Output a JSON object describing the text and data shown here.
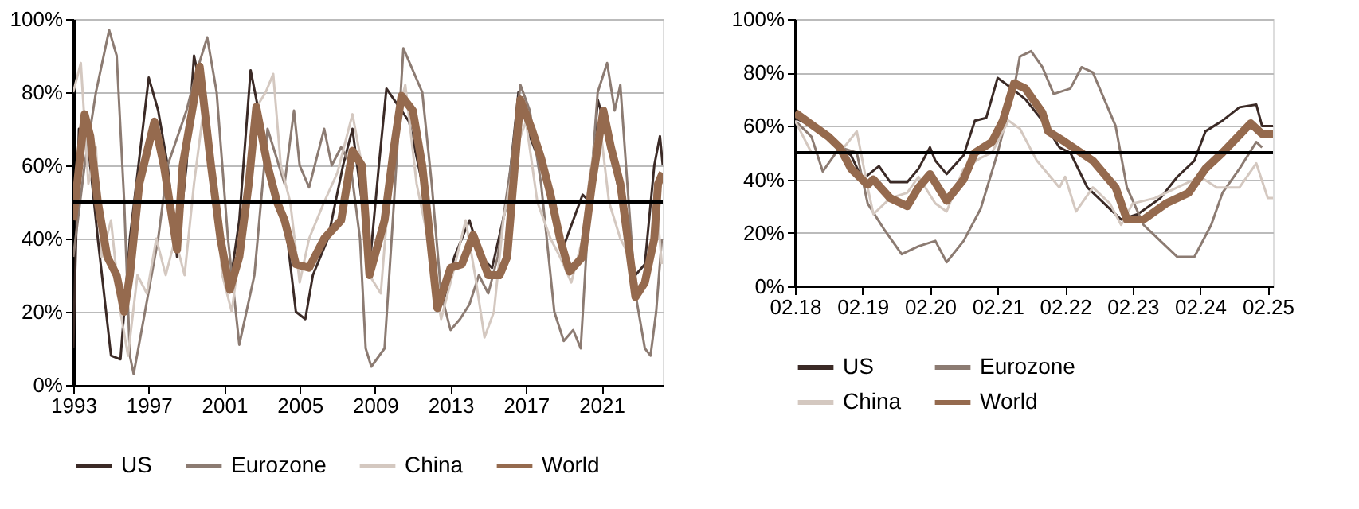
{
  "chart_data": [
    {
      "type": "line",
      "xlim": [
        1993,
        2024.25
      ],
      "xticks": [
        1993,
        1997,
        2001,
        2005,
        2009,
        2013,
        2017,
        2021
      ],
      "ylim": [
        0,
        100
      ],
      "yticks": [
        {
          "value": 0,
          "label": "0%"
        },
        {
          "value": 20,
          "label": "20%"
        },
        {
          "value": 40,
          "label": "40%"
        },
        {
          "value": 60,
          "label": "60%"
        },
        {
          "value": 80,
          "label": "80%"
        },
        {
          "value": 100,
          "label": "100%"
        }
      ],
      "grid": "y",
      "legend": "bottom",
      "line_style": "solid",
      "ref_lines": [
        {
          "axis": "y",
          "value": 50,
          "color": "#000000"
        }
      ],
      "series": [
        {
          "name": "US",
          "color": "#3b2a26",
          "x": [
            1993.0,
            1993.3,
            1993.8,
            1994.3,
            1995.0,
            1995.5,
            1996.0,
            1997.0,
            1997.5,
            1998.0,
            1998.5,
            1999.0,
            1999.4,
            2000.2,
            2000.8,
            2001.3,
            2001.8,
            2002.4,
            2003.2,
            2003.8,
            2004.3,
            2004.8,
            2005.3,
            2005.7,
            2006.5,
            2007.3,
            2007.8,
            2008.3,
            2008.7,
            2009.2,
            2009.6,
            2010.8,
            2011.5,
            2012.2,
            2012.6,
            2013.2,
            2014.0,
            2014.6,
            2015.2,
            2016.0,
            2016.6,
            2017.2,
            2017.8,
            2018.5,
            2019.0,
            2019.5,
            2020.0,
            2020.4,
            2020.8,
            2021.5,
            2022.2,
            2022.8,
            2023.3,
            2023.8,
            2024.1,
            2024.25
          ],
          "values": [
            10,
            70,
            65,
            40,
            8,
            7,
            40,
            84,
            75,
            60,
            35,
            60,
            90,
            70,
            40,
            27,
            45,
            86,
            65,
            50,
            42,
            20,
            18,
            30,
            40,
            60,
            70,
            50,
            32,
            60,
            81,
            72,
            55,
            28,
            22,
            35,
            45,
            35,
            32,
            50,
            80,
            68,
            60,
            50,
            38,
            45,
            52,
            50,
            78,
            65,
            45,
            30,
            33,
            60,
            68,
            60
          ]
        },
        {
          "name": "Eurozone",
          "color": "#8c7b72",
          "x": [
            1993.0,
            1993.6,
            1994.2,
            1994.9,
            1995.3,
            1995.7,
            1996.0,
            1996.2,
            1996.8,
            1997.5,
            1998.0,
            1999.0,
            1999.5,
            2000.1,
            2000.6,
            2001.2,
            2001.8,
            2002.6,
            2003.3,
            2003.6,
            2004.2,
            2004.7,
            2005.0,
            2005.5,
            2006.3,
            2006.7,
            2007.2,
            2007.7,
            2008.2,
            2008.5,
            2008.8,
            2009.5,
            2010.0,
            2010.5,
            2011.5,
            2012.0,
            2012.5,
            2013.0,
            2013.5,
            2014.0,
            2014.5,
            2015.0,
            2015.5,
            2016.2,
            2016.7,
            2017.2,
            2017.8,
            2018.5,
            2019.0,
            2019.5,
            2019.9,
            2020.3,
            2020.8,
            2021.3,
            2021.7,
            2022.0,
            2022.3,
            2022.8,
            2023.3,
            2023.6,
            2023.9,
            2024.2
          ],
          "values": [
            35,
            60,
            80,
            97,
            90,
            50,
            8,
            3,
            20,
            40,
            60,
            75,
            85,
            95,
            80,
            40,
            11,
            30,
            70,
            65,
            55,
            75,
            60,
            54,
            70,
            60,
            65,
            60,
            40,
            10,
            5,
            10,
            50,
            92,
            80,
            55,
            25,
            15,
            18,
            22,
            30,
            25,
            35,
            60,
            82,
            75,
            55,
            20,
            12,
            15,
            10,
            45,
            80,
            88,
            75,
            82,
            60,
            25,
            10,
            8,
            20,
            40
          ]
        },
        {
          "name": "China",
          "color": "#d4c8c0",
          "x": [
            1993.0,
            1993.4,
            1993.8,
            1994.2,
            1994.5,
            1995.0,
            1995.5,
            1995.9,
            1996.4,
            1996.9,
            1997.4,
            1997.9,
            1998.4,
            1998.9,
            1999.4,
            1999.9,
            2000.4,
            2000.9,
            2001.4,
            2001.9,
            2002.6,
            2003.2,
            2003.6,
            2004.0,
            2004.5,
            2005.0,
            2005.5,
            2006.3,
            2007.0,
            2007.8,
            2008.3,
            2008.7,
            2009.3,
            2010.0,
            2010.6,
            2011.2,
            2011.8,
            2012.5,
            2013.1,
            2013.8,
            2014.3,
            2014.8,
            2015.3,
            2015.8,
            2016.5,
            2017.0,
            2017.6,
            2018.3,
            2018.8,
            2019.4,
            2020.0,
            2020.4,
            2020.9,
            2021.4,
            2022.0,
            2022.5,
            2023.0,
            2023.5,
            2024.0,
            2024.2
          ],
          "values": [
            80,
            88,
            55,
            65,
            35,
            45,
            20,
            8,
            30,
            25,
            40,
            30,
            40,
            30,
            55,
            75,
            60,
            30,
            20,
            40,
            75,
            80,
            85,
            60,
            50,
            28,
            40,
            50,
            58,
            74,
            60,
            30,
            25,
            70,
            82,
            55,
            40,
            18,
            30,
            45,
            30,
            13,
            20,
            45,
            65,
            72,
            50,
            40,
            35,
            28,
            40,
            58,
            72,
            50,
            40,
            35,
            25,
            30,
            45,
            33
          ]
        },
        {
          "name": "World",
          "color": "#956a4e",
          "x": [
            1993.0,
            1993.6,
            1993.9,
            1994.3,
            1994.8,
            1995.3,
            1995.7,
            1996.0,
            1996.5,
            1997.3,
            1997.8,
            1998.5,
            1998.8,
            1999.7,
            2000.3,
            2000.8,
            2001.3,
            2001.8,
            2002.3,
            2002.7,
            2003.3,
            2003.8,
            2004.2,
            2004.8,
            2005.5,
            2006.3,
            2007.2,
            2007.8,
            2008.3,
            2008.7,
            2009.5,
            2010.0,
            2010.4,
            2011.0,
            2011.5,
            2012.3,
            2013.0,
            2013.6,
            2014.2,
            2015.0,
            2015.6,
            2016.0,
            2016.7,
            2017.3,
            2017.8,
            2018.3,
            2018.8,
            2019.3,
            2020.0,
            2020.5,
            2021.1,
            2021.5,
            2022.0,
            2022.8,
            2023.3,
            2023.8,
            2024.0,
            2024.25
          ],
          "values": [
            45,
            74,
            68,
            50,
            35,
            30,
            20,
            30,
            55,
            72,
            60,
            37,
            60,
            87,
            60,
            40,
            26,
            35,
            55,
            76,
            60,
            50,
            45,
            33,
            32,
            40,
            45,
            64,
            60,
            30,
            45,
            65,
            79,
            75,
            60,
            21,
            32,
            33,
            41,
            30,
            30,
            35,
            78,
            70,
            62,
            52,
            40,
            31,
            35,
            55,
            75,
            65,
            55,
            24,
            28,
            40,
            55,
            58
          ]
        }
      ]
    },
    {
      "type": "line",
      "xlim": [
        "2018-02",
        "2025-03"
      ],
      "xticks": [
        {
          "value": "2018-02",
          "label": "02.18"
        },
        {
          "value": "2019-02",
          "label": "02.19"
        },
        {
          "value": "2020-02",
          "label": "02.20"
        },
        {
          "value": "2021-02",
          "label": "02.21"
        },
        {
          "value": "2022-02",
          "label": "02.22"
        },
        {
          "value": "2023-02",
          "label": "02.23"
        },
        {
          "value": "2024-02",
          "label": "02.24"
        },
        {
          "value": "2025-02",
          "label": "02.25"
        }
      ],
      "ylim": [
        0,
        100
      ],
      "yticks": [
        {
          "value": 0,
          "label": "0%"
        },
        {
          "value": 20,
          "label": "20%"
        },
        {
          "value": 40,
          "label": "40%"
        },
        {
          "value": 60,
          "label": "60%"
        },
        {
          "value": 80,
          "label": "80%"
        },
        {
          "value": 100,
          "label": "100%"
        }
      ],
      "grid": "y",
      "legend": "bottom",
      "line_style": "solid",
      "ref_lines": [
        {
          "axis": "y",
          "value": 50,
          "color": "#000000"
        }
      ],
      "series": [
        {
          "name": "US",
          "color": "#3b2a26",
          "x": [
            "2018-02",
            "2018-08",
            "2018-10",
            "2018-12",
            "2019-02",
            "2019-05",
            "2019-07",
            "2019-10",
            "2019-12",
            "2020-02",
            "2020-03",
            "2020-05",
            "2020-08",
            "2020-10",
            "2020-12",
            "2021-02",
            "2021-04",
            "2021-07",
            "2021-10",
            "2022-01",
            "2022-03",
            "2022-06",
            "2022-10",
            "2022-12",
            "2023-03",
            "2023-07",
            "2023-10",
            "2024-01",
            "2024-03",
            "2024-06",
            "2024-09",
            "2024-12",
            "2025-01",
            "2025-03"
          ],
          "values": [
            63,
            57,
            52,
            49,
            40,
            45,
            39,
            39,
            44,
            52,
            47,
            42,
            49,
            62,
            63,
            78,
            75,
            70,
            62,
            52,
            50,
            37,
            29,
            25,
            27,
            33,
            41,
            47,
            58,
            62,
            67,
            68,
            60,
            60
          ]
        },
        {
          "name": "Eurozone",
          "color": "#8c7b72",
          "x": [
            "2018-02",
            "2018-05",
            "2018-07",
            "2018-10",
            "2019-01",
            "2019-03",
            "2019-06",
            "2019-09",
            "2019-12",
            "2020-03",
            "2020-05",
            "2020-08",
            "2020-11",
            "2021-02",
            "2021-05",
            "2021-06",
            "2021-08",
            "2021-10",
            "2021-12",
            "2022-03",
            "2022-05",
            "2022-07",
            "2022-11",
            "2023-01",
            "2023-04",
            "2023-07",
            "2023-10",
            "2024-01",
            "2024-04",
            "2024-06",
            "2024-09",
            "2024-12",
            "2025-01"
          ],
          "values": [
            62,
            56,
            43,
            52,
            50,
            31,
            21,
            12,
            15,
            17,
            9,
            17,
            29,
            50,
            74,
            86,
            88,
            82,
            72,
            74,
            82,
            80,
            60,
            37,
            23,
            17,
            11,
            11,
            23,
            35,
            44,
            54,
            52
          ]
        },
        {
          "name": "China",
          "color": "#d4c8c0",
          "x": [
            "2018-02",
            "2018-05",
            "2018-10",
            "2019-01",
            "2019-03",
            "2019-04",
            "2019-07",
            "2019-10",
            "2019-12",
            "2020-03",
            "2020-05",
            "2020-08",
            "2020-11",
            "2021-01",
            "2021-04",
            "2021-06",
            "2021-09",
            "2022-01",
            "2022-02",
            "2022-04",
            "2022-07",
            "2022-10",
            "2022-12",
            "2023-02",
            "2023-06",
            "2023-10",
            "2024-02",
            "2024-05",
            "2024-09",
            "2024-12",
            "2025-02",
            "2025-03"
          ],
          "values": [
            62,
            50,
            50,
            58,
            37,
            27,
            33,
            35,
            41,
            31,
            28,
            44,
            48,
            50,
            62,
            59,
            47,
            37,
            41,
            28,
            37,
            31,
            23,
            31,
            33,
            37,
            41,
            37,
            37,
            46,
            33,
            33
          ]
        },
        {
          "name": "World",
          "color": "#956a4e",
          "x": [
            "2018-02",
            "2018-08",
            "2018-10",
            "2018-12",
            "2019-03",
            "2019-04",
            "2019-07",
            "2019-10",
            "2019-12",
            "2020-02",
            "2020-05",
            "2020-08",
            "2020-10",
            "2021-01",
            "2021-03",
            "2021-05",
            "2021-07",
            "2021-10",
            "2021-11",
            "2022-02",
            "2022-07",
            "2022-11",
            "2023-01",
            "2023-04",
            "2023-08",
            "2023-12",
            "2024-03",
            "2024-06",
            "2024-11",
            "2025-01",
            "2025-03"
          ],
          "values": [
            65,
            56,
            52,
            44,
            38,
            40,
            33,
            30,
            37,
            42,
            32,
            40,
            50,
            54,
            62,
            76,
            74,
            65,
            58,
            54,
            47,
            37,
            25,
            25,
            31,
            35,
            44,
            50,
            61,
            57,
            57
          ]
        }
      ]
    }
  ]
}
